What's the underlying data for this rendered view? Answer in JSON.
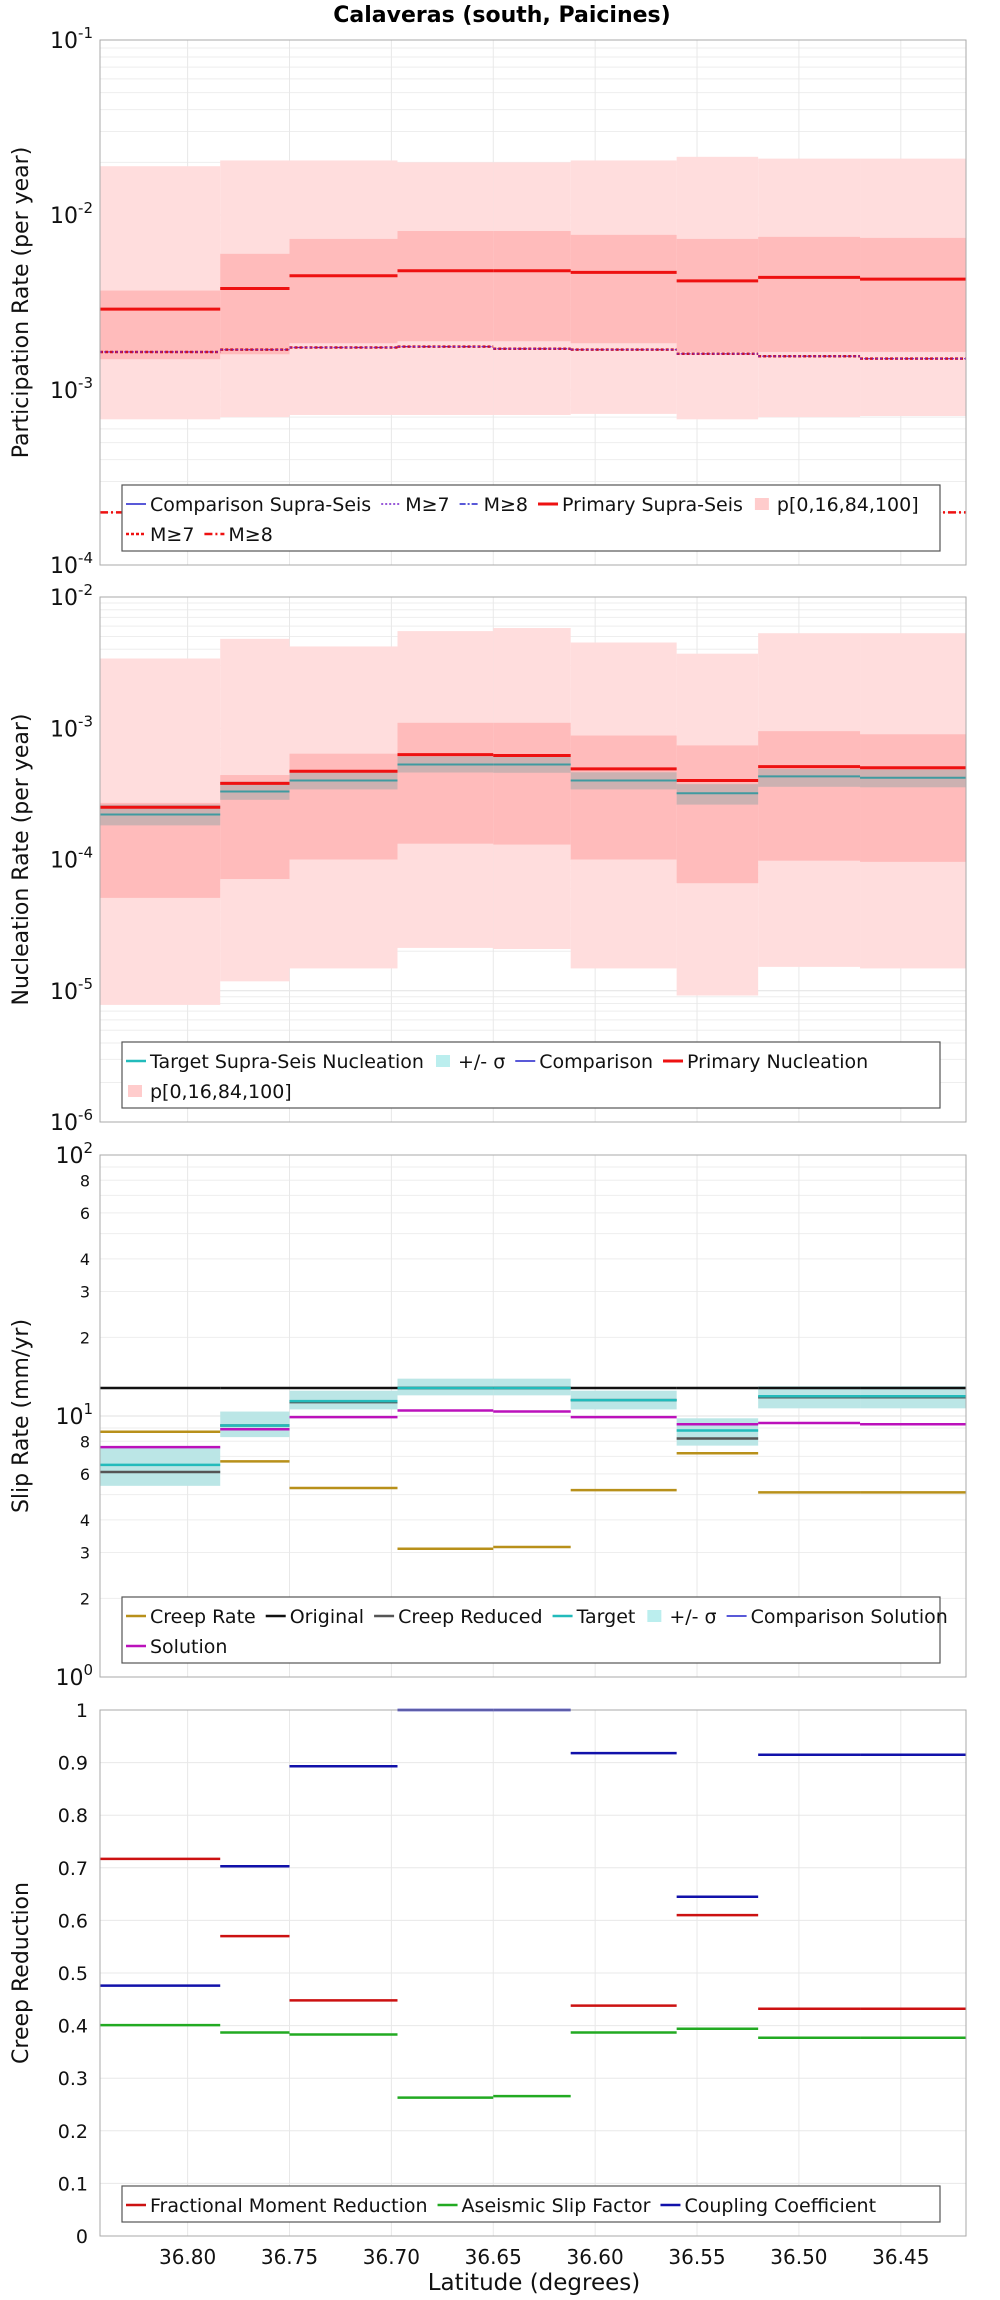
{
  "figure": {
    "title": "Calaveras (south, Paicines)",
    "xlabel": "Latitude (degrees)",
    "x_ticks": [
      36.8,
      36.75,
      36.7,
      36.65,
      36.6,
      36.55,
      36.5,
      36.45
    ],
    "x_tick_labels": [
      "36.80",
      "36.75",
      "36.70",
      "36.65",
      "36.60",
      "36.55",
      "36.50",
      "36.45"
    ],
    "xlim": [
      36.843,
      36.418
    ],
    "bin_edges": [
      36.843,
      36.784,
      36.75,
      36.697,
      36.65,
      36.612,
      36.56,
      36.52,
      36.47,
      36.418
    ]
  },
  "chart_data": [
    {
      "type": "line",
      "panel": "participation",
      "ylabel": "Participation Rate (per year)",
      "yscale": "log",
      "ylim": [
        0.0001,
        0.1
      ],
      "y_tick_labels": [
        {
          "base": "10",
          "exp": "-4"
        },
        {
          "base": "10",
          "exp": "-3"
        },
        {
          "base": "10",
          "exp": "-2"
        },
        {
          "base": "10",
          "exp": "-1"
        }
      ],
      "grid": true,
      "bands": [
        {
          "name": "p[0,100]",
          "color": "#ffdddd",
          "lower": [
            0.00068,
            0.0007,
            0.00072,
            0.00072,
            0.00072,
            0.00073,
            0.00068,
            0.0007,
            0.00071
          ],
          "upper": [
            0.019,
            0.0205,
            0.0205,
            0.02,
            0.02,
            0.0205,
            0.0215,
            0.021,
            0.021
          ]
        },
        {
          "name": "p[16,84]",
          "color": "#ffbbbb",
          "lower": [
            0.0015,
            0.0016,
            0.00185,
            0.0019,
            0.0019,
            0.00185,
            0.00165,
            0.00165,
            0.00165
          ],
          "upper": [
            0.0037,
            0.006,
            0.0073,
            0.0081,
            0.0081,
            0.0077,
            0.0073,
            0.0075,
            0.0074
          ]
        }
      ],
      "series": [
        {
          "name": "Primary Supra-Seis",
          "color": "#ee1111",
          "dash": "",
          "width": 3,
          "values": [
            0.0029,
            0.0038,
            0.0045,
            0.0048,
            0.0048,
            0.0047,
            0.0042,
            0.0044,
            0.0043
          ]
        },
        {
          "name": "M≥7",
          "color": "#cc1122",
          "dash": "3,2",
          "width": 2.5,
          "values": [
            0.00165,
            0.0017,
            0.00175,
            0.00177,
            0.00172,
            0.0017,
            0.00161,
            0.00156,
            0.00151
          ]
        },
        {
          "name": "M≥7",
          "color": "#7722cc",
          "dash": "2,2",
          "width": 1.2,
          "values": [
            0.00165,
            0.0017,
            0.00175,
            0.00177,
            0.00172,
            0.0017,
            0.00161,
            0.00156,
            0.00151
          ]
        },
        {
          "name": "M≥8",
          "color": "#ee1111",
          "dash": "8,3,2,3",
          "width": 2.5,
          "constant": 0.0002
        }
      ],
      "legend": {
        "placement": "bottom",
        "rows": [
          [
            {
              "label": "Comparison Supra-Seis",
              "type": "line",
              "color": "#2222cc",
              "dash": "",
              "width": 1.5
            },
            {
              "label": "M≥7",
              "type": "line",
              "color": "#7722cc",
              "dash": "2,2",
              "width": 1.5
            },
            {
              "label": "M≥8",
              "type": "line",
              "color": "#2222cc",
              "dash": "6,2,2,2",
              "width": 1.5
            },
            {
              "label": "Primary Supra-Seis",
              "type": "line",
              "color": "#ee1111",
              "dash": "",
              "width": 3
            },
            {
              "label": "p[0,16,84,100]",
              "type": "patch",
              "color": "#ffcccc"
            }
          ],
          [
            {
              "label": "M≥7",
              "type": "line",
              "color": "#ee1111",
              "dash": "3,2",
              "width": 2.5
            },
            {
              "label": "M≥8",
              "type": "line",
              "color": "#ee1111",
              "dash": "8,3,2,3",
              "width": 2.5
            }
          ]
        ]
      }
    },
    {
      "type": "line",
      "panel": "nucleation",
      "ylabel": "Nucleation Rate (per year)",
      "yscale": "log",
      "ylim": [
        1e-06,
        0.01
      ],
      "y_tick_labels": [
        {
          "base": "10",
          "exp": "-6"
        },
        {
          "base": "10",
          "exp": "-5"
        },
        {
          "base": "10",
          "exp": "-4"
        },
        {
          "base": "10",
          "exp": "-3"
        },
        {
          "base": "10",
          "exp": "-2"
        }
      ],
      "grid": true,
      "bands": [
        {
          "name": "p[0,100]",
          "color": "#ffdddd",
          "lower": [
            7.8e-06,
            1.18e-05,
            1.48e-05,
            2.12e-05,
            2.08e-05,
            1.48e-05,
            9.2e-06,
            1.52e-05,
            1.48e-05
          ],
          "upper": [
            0.0034,
            0.0048,
            0.0042,
            0.0055,
            0.0058,
            0.0045,
            0.0037,
            0.0053,
            0.0053
          ]
        },
        {
          "name": "p[16,84]",
          "color": "#ffbbbb",
          "lower": [
            5.1e-05,
            7.1e-05,
            0.0001,
            0.000132,
            0.00013,
            0.0001,
            6.6e-05,
            9.8e-05,
            9.6e-05
          ],
          "upper": [
            0.00027,
            0.00044,
            0.00064,
            0.0011,
            0.0011,
            0.00088,
            0.00074,
            0.00095,
            0.0009
          ]
        },
        {
          "name": "+/- σ",
          "color": "#aaaaaa",
          "opacity": 0.6,
          "lower": [
            0.000182,
            0.000285,
            0.000342,
            0.00046,
            0.000458,
            0.000342,
            0.000262,
            0.000358,
            0.000355
          ],
          "upper": [
            0.000262,
            0.000392,
            0.000462,
            0.00061,
            0.00061,
            0.000462,
            0.000375,
            0.00049,
            0.000485
          ]
        }
      ],
      "series": [
        {
          "name": "Primary Nucleation",
          "color": "#ee1111",
          "dash": "",
          "width": 3,
          "values": [
            0.00025,
            0.00038,
            0.00047,
            0.00063,
            0.00062,
            0.00049,
            0.0004,
            0.00051,
            0.0005
          ]
        },
        {
          "name": "Target Supra-Seis Nucleation",
          "color": "#3f9aa0",
          "dash": "",
          "width": 2,
          "values": [
            0.00022,
            0.00033,
            0.0004,
            0.00053,
            0.00053,
            0.0004,
            0.00032,
            0.00043,
            0.00042
          ]
        }
      ],
      "legend": {
        "placement": "bottom",
        "rows": [
          [
            {
              "label": "Target Supra-Seis Nucleation",
              "type": "line",
              "color": "#22bbbb",
              "dash": "",
              "width": 2.5
            },
            {
              "label": "+/- σ",
              "type": "patch",
              "color": "#bbeeee"
            },
            {
              "label": "Comparison",
              "type": "line",
              "color": "#2222cc",
              "dash": "",
              "width": 1.5
            },
            {
              "label": "Primary Nucleation",
              "type": "line",
              "color": "#ee1111",
              "dash": "",
              "width": 3
            }
          ],
          [
            {
              "label": "p[0,16,84,100]",
              "type": "patch",
              "color": "#ffcccc"
            }
          ]
        ]
      }
    },
    {
      "type": "line",
      "panel": "slip",
      "ylabel": "Slip Rate (mm/yr)",
      "yscale": "log",
      "ylim": [
        1,
        100
      ],
      "y_tick_labels": [
        {
          "base": "10",
          "exp": "0"
        },
        {
          "base": "10",
          "exp": "1"
        },
        {
          "base": "10",
          "exp": "2"
        }
      ],
      "minor_tick_labels": [
        2,
        3,
        4,
        6,
        8,
        20,
        30,
        40,
        60,
        80
      ],
      "minor_tick_text": [
        "2",
        "3",
        "4",
        "6",
        "8",
        "2",
        "3",
        "4",
        "6",
        "8"
      ],
      "grid": true,
      "bands": [
        {
          "name": "+/- σ",
          "color": "#bbe6e6",
          "lower": [
            5.4,
            8.3,
            10.6,
            12.0,
            12.0,
            10.6,
            7.7,
            10.7,
            10.7
          ],
          "upper": [
            7.6,
            10.4,
            12.5,
            13.9,
            13.9,
            12.5,
            9.8,
            13.0,
            13.0
          ]
        }
      ],
      "series": [
        {
          "name": "Original",
          "color": "#111111",
          "dash": "",
          "width": 2.5,
          "values": [
            12.8,
            12.8,
            12.8,
            12.8,
            12.8,
            12.8,
            12.8,
            12.8,
            12.8
          ]
        },
        {
          "name": "Creep Reduced",
          "color": "#555555",
          "dash": "",
          "width": 2.5,
          "values": [
            6.1,
            9.2,
            11.3,
            12.8,
            12.8,
            11.5,
            8.2,
            11.8,
            11.8
          ]
        },
        {
          "name": "Target",
          "color": "#22bbbb",
          "dash": "",
          "width": 2.5,
          "values": [
            6.5,
            9.2,
            11.4,
            12.8,
            12.8,
            11.5,
            8.8,
            11.9,
            11.9
          ]
        },
        {
          "name": "Creep Rate",
          "color": "#b8901a",
          "dash": "",
          "width": 2.5,
          "values": [
            8.7,
            6.7,
            5.3,
            3.1,
            3.15,
            5.2,
            7.2,
            5.1,
            5.1
          ]
        },
        {
          "name": "Solution",
          "color": "#bb11bb",
          "dash": "",
          "width": 2.5,
          "values": [
            7.6,
            8.9,
            9.9,
            10.5,
            10.4,
            9.9,
            9.3,
            9.4,
            9.3
          ]
        }
      ],
      "legend": {
        "placement": "bottom",
        "rows": [
          [
            {
              "label": "Creep Rate",
              "type": "line",
              "color": "#b8901a",
              "dash": "",
              "width": 2.5
            },
            {
              "label": "Original",
              "type": "line",
              "color": "#111111",
              "dash": "",
              "width": 2.5
            },
            {
              "label": "Creep Reduced",
              "type": "line",
              "color": "#555555",
              "dash": "",
              "width": 2.5
            },
            {
              "label": "Target",
              "type": "line",
              "color": "#22bbbb",
              "dash": "",
              "width": 2.5
            },
            {
              "label": "+/- σ",
              "type": "patch",
              "color": "#bbeeee"
            },
            {
              "label": "Comparison Solution",
              "type": "line",
              "color": "#2222cc",
              "dash": "",
              "width": 1.5
            }
          ],
          [
            {
              "label": "Solution",
              "type": "line",
              "color": "#bb11bb",
              "dash": "",
              "width": 2.5
            }
          ]
        ]
      }
    },
    {
      "type": "line",
      "panel": "creep",
      "ylabel": "Creep Reduction",
      "yscale": "linear",
      "ylim": [
        0,
        1
      ],
      "y_ticks": [
        0,
        0.1,
        0.2,
        0.3,
        0.4,
        0.5,
        0.6,
        0.7,
        0.8,
        0.9,
        1
      ],
      "y_tick_labels": [
        "0",
        "0.1",
        "0.2",
        "0.3",
        "0.4",
        "0.5",
        "0.6",
        "0.7",
        "0.8",
        "0.9",
        "1"
      ],
      "grid": true,
      "bands": [],
      "series": [
        {
          "name": "Fractional Moment Reduction",
          "color": "#cc1111",
          "dash": "",
          "width": 2.5,
          "values": [
            0.717,
            0.57,
            0.448,
            null,
            null,
            0.438,
            0.61,
            0.432,
            0.432
          ]
        },
        {
          "name": "Aseismic Slip Factor",
          "color": "#22aa22",
          "dash": "",
          "width": 2.5,
          "values": [
            0.401,
            0.387,
            0.383,
            0.263,
            0.266,
            0.387,
            0.394,
            0.377,
            0.377
          ]
        },
        {
          "name": "Coupling Coefficient",
          "color": "#1111aa",
          "dash": "",
          "width": 2.5,
          "values": [
            0.476,
            0.703,
            0.893,
            1.0,
            1.0,
            0.918,
            0.645,
            0.915,
            0.915
          ]
        }
      ],
      "legend": {
        "placement": "bottom",
        "rows": [
          [
            {
              "label": "Fractional Moment Reduction",
              "type": "line",
              "color": "#cc1111",
              "dash": "",
              "width": 2.5
            },
            {
              "label": "Aseismic Slip Factor",
              "type": "line",
              "color": "#22aa22",
              "dash": "",
              "width": 2.5
            },
            {
              "label": "Coupling Coefficient",
              "type": "line",
              "color": "#1111aa",
              "dash": "",
              "width": 2.5
            }
          ]
        ]
      }
    }
  ]
}
